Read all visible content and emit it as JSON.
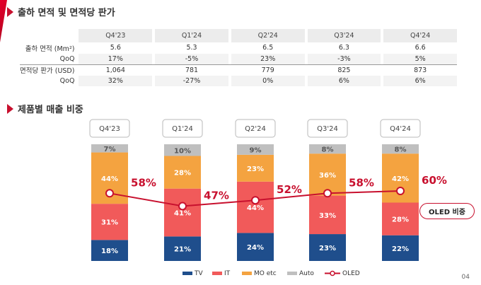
{
  "section1": {
    "title": "출하 면적 및 면적당 판가"
  },
  "section2": {
    "title": "제품별 매출 비중"
  },
  "table": {
    "headers": [
      "Q4'23",
      "Q1'24",
      "Q2'24",
      "Q3'24",
      "Q4'24"
    ],
    "rows": [
      {
        "label": "출하 면적 (Mm²)",
        "values": [
          "5.6",
          "5.3",
          "6.5",
          "6.3",
          "6.6"
        ]
      },
      {
        "label": "QoQ",
        "values": [
          "17%",
          "-5%",
          "23%",
          "-3%",
          "5%"
        ]
      },
      {
        "label": "면적당 판가 (USD)",
        "values": [
          "1,064",
          "781",
          "779",
          "825",
          "873"
        ]
      },
      {
        "label": "QoQ",
        "values": [
          "32%",
          "-27%",
          "0%",
          "6%",
          "6%"
        ]
      }
    ]
  },
  "chart_data": {
    "type": "bar",
    "stacked": true,
    "categories": [
      "Q4'23",
      "Q1'24",
      "Q2'24",
      "Q3'24",
      "Q4'24"
    ],
    "series": [
      {
        "name": "TV",
        "color": "#1f4e8c",
        "values": [
          18,
          21,
          24,
          23,
          22
        ]
      },
      {
        "name": "IT",
        "color": "#f15a5a",
        "values": [
          31,
          41,
          44,
          33,
          28
        ]
      },
      {
        "name": "MO etc",
        "color": "#f4a340",
        "values": [
          44,
          28,
          23,
          36,
          42
        ]
      },
      {
        "name": "Auto",
        "color": "#bfbfbf",
        "values": [
          7,
          10,
          9,
          8,
          8
        ]
      }
    ],
    "line_series": {
      "name": "OLED",
      "color": "#c8102e",
      "values": [
        58,
        47,
        52,
        58,
        60
      ]
    },
    "value_suffix": "%",
    "legend_position": "bottom"
  },
  "badge": {
    "label": "OLED 비중"
  },
  "page_number": "04"
}
